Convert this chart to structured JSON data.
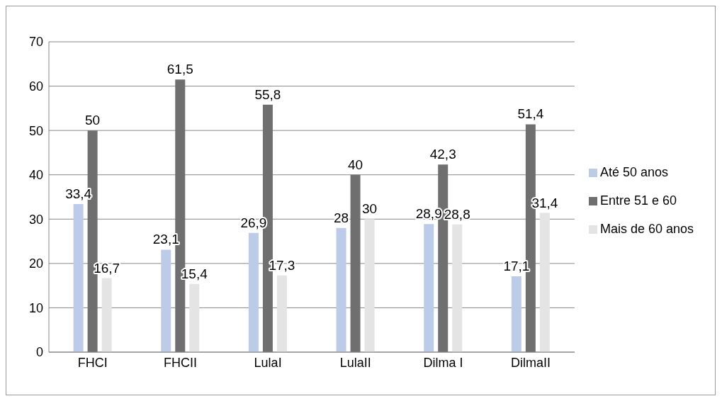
{
  "chart_data": {
    "type": "bar",
    "categories": [
      "FHCI",
      "FHCII",
      "LulaI",
      "LulaII",
      "Dilma I",
      "DilmaII"
    ],
    "series": [
      {
        "name": "Até 50 anos",
        "color": "#bccbe8",
        "values": [
          33.4,
          23.1,
          26.9,
          28,
          28.9,
          17.1
        ],
        "value_labels": [
          "33,4",
          "23,1",
          "26,9",
          "28",
          "28,9",
          "17,1"
        ]
      },
      {
        "name": "Entre 51 e 60",
        "color": "#6f6f6f",
        "values": [
          50,
          61.5,
          55.8,
          40,
          42.3,
          51.4
        ],
        "value_labels": [
          "50",
          "61,5",
          "55,8",
          "40",
          "42,3",
          "51,4"
        ]
      },
      {
        "name": "Mais de 60 anos",
        "color": "#e4e4e4",
        "values": [
          16.7,
          15.4,
          17.3,
          30,
          28.8,
          31.4
        ],
        "value_labels": [
          "16,7",
          "15,4",
          "17,3",
          "30",
          "28,8",
          "31,4"
        ]
      }
    ],
    "ylim": [
      0,
      70
    ],
    "yticks": [
      0,
      10,
      20,
      30,
      40,
      50,
      60,
      70
    ],
    "grid": "y",
    "legend": "right"
  }
}
